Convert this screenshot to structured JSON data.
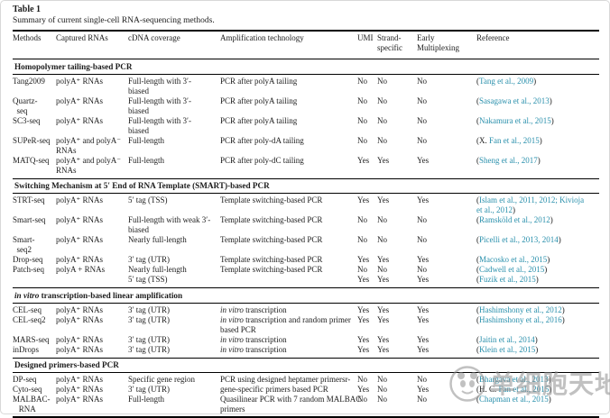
{
  "page": {
    "table_label": "Table 1",
    "caption": "Summary of current single-cell RNA-sequencing methods."
  },
  "colors": {
    "text": "#1c1c1c",
    "link_teal": "#2a90ac",
    "rule": "#000000",
    "watermark_gray": "#8f8f8f"
  },
  "columns": [
    "Methods",
    "Captured RNAs",
    "cDNA coverage",
    "Amplification technology",
    "UMI",
    "Strand-\nspecific",
    "Early\nMultiplexing",
    "Reference"
  ],
  "sections": [
    {
      "title": "Homopolymer tailing-based PCR",
      "rows": [
        {
          "method": "Tang2009",
          "captured": "polyA⁺ RNAs",
          "coverage": "Full-length with 3′-\nbiased",
          "amplification": "PCR after polyA tailing",
          "umi": "No",
          "strand": "No",
          "early": "No",
          "refs": [
            {
              "pre": "(",
              "link": "Tang et al., 2009",
              "post": ")"
            }
          ]
        },
        {
          "method": "Quartz-\n  seq",
          "captured": "polyA⁺ RNAs",
          "coverage": "Full-length with 3′-\nbiased",
          "amplification": "PCR after polyA tailing",
          "umi": "No",
          "strand": "No",
          "early": "No",
          "refs": [
            {
              "pre": "(",
              "link": "Sasagawa et al., 2013",
              "post": ")"
            }
          ]
        },
        {
          "method": "SC3-seq",
          "captured": "polyA⁺ RNAs",
          "coverage": "Full-length with 3′-\nbiased",
          "amplification": "PCR after polyA tailing",
          "umi": "No",
          "strand": "No",
          "early": "No",
          "refs": [
            {
              "pre": "(",
              "link": "Nakamura et al., 2015",
              "post": ")"
            }
          ]
        },
        {
          "method": "SUPeR-seq",
          "captured": "polyA⁺ and polyA⁻\nRNAs",
          "coverage": "Full-length",
          "amplification": "PCR after poly-dA tailing",
          "umi": "No",
          "strand": "No",
          "early": "No",
          "refs": [
            {
              "pre": "(X. ",
              "link": "Fan et al., 2015",
              "post": ")"
            }
          ]
        },
        {
          "method": "MATQ-seq",
          "captured": "polyA⁺ and polyA⁻\nRNAs",
          "coverage": "Full-length",
          "amplification": "PCR after poly-dC tailing",
          "umi": "Yes",
          "strand": "Yes",
          "early": "Yes",
          "refs": [
            {
              "pre": "(",
              "link": "Sheng et al., 2017",
              "post": ")"
            }
          ]
        }
      ]
    },
    {
      "title": "Switching Mechanism at 5′ End of RNA Template (SMART)-based PCR",
      "rows": [
        {
          "method": "STRT-seq",
          "captured": "polyA⁺ RNAs",
          "coverage": "5′ tag (TSS)",
          "amplification": "Template switching-based PCR",
          "umi": "Yes",
          "strand": "Yes",
          "early": "Yes",
          "refs": [
            {
              "pre": "(",
              "link": "Islam et al., 2011, 2012; Kivioja\net al., 2012",
              "post": ")"
            }
          ]
        },
        {
          "method": "Smart-seq",
          "captured": "polyA⁺ RNAs",
          "coverage": "Full-length with weak 3′-\nbiased",
          "amplification": "Template switching-based PCR",
          "umi": "No",
          "strand": "No",
          "early": "No",
          "refs": [
            {
              "pre": "(",
              "link": "Ramsköld et al., 2012",
              "post": ")"
            }
          ]
        },
        {
          "method": "Smart-\n  seq2",
          "captured": "polyA⁺ RNAs",
          "coverage": "Nearly full-length",
          "amplification": "Template switching-based PCR",
          "umi": "No",
          "strand": "No",
          "early": "No",
          "refs": [
            {
              "pre": "(",
              "link": "Picelli et al., 2013, 2014",
              "post": ")"
            }
          ]
        },
        {
          "method": "Drop-seq",
          "captured": "polyA⁺ RNAs",
          "coverage": "3′ tag (UTR)",
          "amplification": "Template switching-based PCR",
          "umi": "Yes",
          "strand": "Yes",
          "early": "Yes",
          "refs": [
            {
              "pre": "(",
              "link": "Macosko et al., 2015",
              "post": ")"
            }
          ]
        },
        {
          "method": "Patch-seq",
          "captured": "polyA + RNAs",
          "coverage": "Nearly full-length\n5′ tag (TSS)",
          "amplification": "Template switching-based PCR",
          "umi": "No\nYes",
          "strand": "No\nYes",
          "early": "No\nYes",
          "refs": [
            {
              "pre": "(",
              "link": "Cadwell et al., 2015",
              "post": ")"
            },
            {
              "pre": "(",
              "link": "Fuzik et al., 2015",
              "post": ")"
            }
          ]
        }
      ]
    },
    {
      "title": "in vitro transcription-based linear amplification",
      "rows": [
        {
          "method": "CEL-seq",
          "captured": "polyA⁺ RNAs",
          "coverage": "3′ tag (UTR)",
          "amplification": "in vitro transcription",
          "umi": "Yes",
          "strand": "Yes",
          "early": "Yes",
          "refs": [
            {
              "pre": "(",
              "link": "Hashimshony et al., 2012",
              "post": ")"
            }
          ]
        },
        {
          "method": "CEL-seq2",
          "captured": "polyA⁺ RNAs",
          "coverage": "3′ tag (UTR)",
          "amplification": "in vitro transcription and random primer\nbased PCR",
          "umi": "Yes",
          "strand": "Yes",
          "early": "Yes",
          "refs": [
            {
              "pre": "(",
              "link": "Hashimshony et al., 2016",
              "post": ")"
            }
          ]
        },
        {
          "method": "MARS-seq",
          "captured": "polyA⁺ RNAs",
          "coverage": "3′ tag (UTR)",
          "amplification": "in vitro transcription",
          "umi": "Yes",
          "strand": "Yes",
          "early": "Yes",
          "refs": [
            {
              "pre": "(",
              "link": "Jaitin et al., 2014",
              "post": ")"
            }
          ]
        },
        {
          "method": "inDrops",
          "captured": "polyA⁺ RNAs",
          "coverage": "3′ tag (UTR)",
          "amplification": "in vitro transcription",
          "umi": "Yes",
          "strand": "Yes",
          "early": "Yes",
          "refs": [
            {
              "pre": "(",
              "link": "Klein et al., 2015",
              "post": ")"
            }
          ]
        }
      ]
    },
    {
      "title": "Designed primers-based PCR",
      "rows": [
        {
          "method": "DP-seq",
          "captured": "polyA⁺ RNAs",
          "coverage": "Specific gene region",
          "amplification": "PCR using designed heptamer primersr-",
          "umi": "No",
          "strand": "No",
          "early": "No",
          "refs": [
            {
              "pre": "(",
              "link": "Bhargava et al., 2013",
              "post": ")"
            }
          ]
        },
        {
          "method": "Cyto-seq",
          "captured": "polyA⁺ RNAs",
          "coverage": "3′ tag (UTR)",
          "amplification": "gene-specific primers based PCR",
          "umi": "Yes",
          "strand": "No",
          "early": "Yes",
          "refs": [
            {
              "pre": "(H. C. ",
              "link": "Fan et al., 2015",
              "post": ")"
            }
          ]
        },
        {
          "method": "MALBAC-\n   RNA",
          "captured": "polyA⁺ RNAs",
          "coverage": "Full-length",
          "amplification": "Quasilinear PCR with 7 random MALBAC\nprimers",
          "umi": "No",
          "strand": "No",
          "early": "No",
          "refs": [
            {
              "pre": "(",
              "link": "Chapman et al., 2015",
              "post": ")"
            }
          ]
        }
      ]
    }
  ],
  "watermark": {
    "text": "单细胞天地",
    "logo_icon": "panda-circle-logo"
  }
}
